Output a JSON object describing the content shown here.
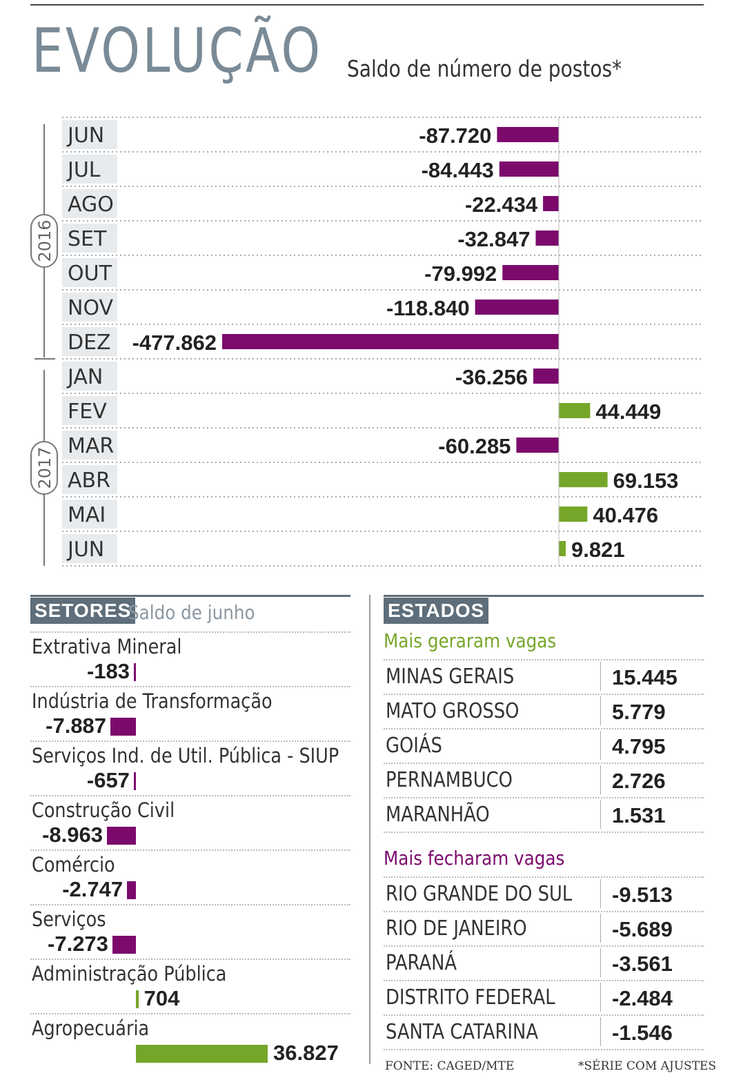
{
  "title": "EVOLUÇÃO",
  "subtitle": "Saldo de número de postos*",
  "colors": {
    "negative": "#7b0a6c",
    "positive": "#76a629",
    "header_bg": "#5e6e7a",
    "title": "#7a8a96"
  },
  "chart_data": [
    {
      "type": "bar",
      "orientation": "horizontal",
      "groups": [
        {
          "label": "2016",
          "months": [
            "JUN",
            "JUL",
            "AGO",
            "SET",
            "OUT",
            "NOV",
            "DEZ"
          ]
        },
        {
          "label": "2017",
          "months": [
            "JAN",
            "FEV",
            "MAR",
            "ABR",
            "MAI",
            "JUN"
          ]
        }
      ],
      "categories": [
        "JUN",
        "JUL",
        "AGO",
        "SET",
        "OUT",
        "NOV",
        "DEZ",
        "JAN",
        "FEV",
        "MAR",
        "ABR",
        "MAI",
        "JUN"
      ],
      "values": [
        -87720,
        -84443,
        -22434,
        -32847,
        -79992,
        -118840,
        -477862,
        -36256,
        44449,
        -60285,
        69153,
        40476,
        9821
      ],
      "labels": [
        "-87.720",
        "-84.443",
        "-22.434",
        "-32.847",
        "-79.992",
        "-118.840",
        "-477.862",
        "-36.256",
        "44.449",
        "-60.285",
        "69.153",
        "40.476",
        "9.821"
      ],
      "xlim": [
        -477862,
        175000
      ],
      "grid": false
    },
    {
      "type": "bar",
      "orientation": "horizontal",
      "title": "SETORES",
      "subtitle": "Saldo de junho",
      "categories": [
        "Extrativa Mineral",
        "Indústria de Transformação",
        "Serviços Ind. de Util. Pública - SIUP",
        "Construção Civil",
        "Comércio",
        "Serviços",
        "Administração Pública",
        "Agropecuária"
      ],
      "values": [
        -183,
        -7887,
        -657,
        -8963,
        -2747,
        -7273,
        704,
        36827
      ],
      "labels": [
        "-183",
        "-7.887",
        "-657",
        "-8.963",
        "-2.747",
        "-7.273",
        "704",
        "36.827"
      ],
      "xlim": [
        -8963,
        36827
      ]
    },
    {
      "type": "table",
      "title": "ESTADOS",
      "groups": [
        {
          "label": "Mais geraram vagas",
          "rows": [
            {
              "state": "MINAS GERAIS",
              "value": "15.445"
            },
            {
              "state": "MATO GROSSO",
              "value": "5.779"
            },
            {
              "state": "GOIÁS",
              "value": "4.795"
            },
            {
              "state": "PERNAMBUCO",
              "value": "2.726"
            },
            {
              "state": "MARANHÃO",
              "value": "1.531"
            }
          ]
        },
        {
          "label": "Mais fecharam vagas",
          "rows": [
            {
              "state": "RIO GRANDE DO SUL",
              "value": "-9.513"
            },
            {
              "state": "RIO DE JANEIRO",
              "value": "-5.689"
            },
            {
              "state": "PARANÁ",
              "value": "-3.561"
            },
            {
              "state": "DISTRITO FEDERAL",
              "value": "-2.484"
            },
            {
              "state": "SANTA CATARINA",
              "value": "-1.546"
            }
          ]
        }
      ]
    }
  ],
  "footer": {
    "source": "FONTE: CAGED/MTE",
    "note": "*SÉRIE COM AJUSTES"
  }
}
